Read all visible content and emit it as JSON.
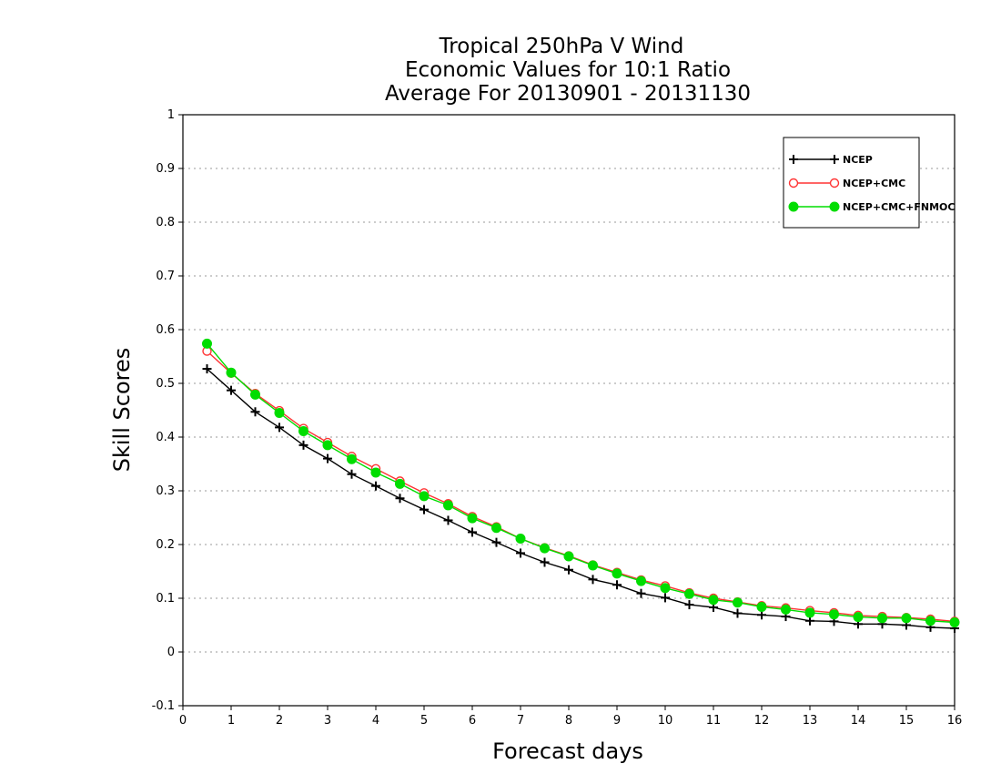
{
  "chart_data": {
    "type": "line",
    "title_lines": [
      "Tropical 250hPa V Wind",
      "Economic Values for 10:1 Ratio",
      "Average For 20130901 - 20131130"
    ],
    "xlabel": "Forecast days",
    "ylabel": "Skill Scores",
    "xlim": [
      0,
      16
    ],
    "ylim": [
      -0.1,
      1
    ],
    "xticks": [
      "0",
      "1",
      "2",
      "3",
      "4",
      "5",
      "6",
      "7",
      "8",
      "9",
      "10",
      "11",
      "12",
      "13",
      "14",
      "15",
      "16"
    ],
    "yticks": [
      "-0.1",
      "0",
      "0.1",
      "0.2",
      "0.3",
      "0.4",
      "0.5",
      "0.6",
      "0.7",
      "0.8",
      "0.9",
      "1"
    ],
    "grid": "horizontal dotted",
    "legend_position": "top-right",
    "x": [
      0.5,
      1,
      1.5,
      2,
      2.5,
      3,
      3.5,
      4,
      4.5,
      5,
      5.5,
      6,
      6.5,
      7,
      7.5,
      8,
      8.5,
      9,
      9.5,
      10,
      10.5,
      11,
      11.5,
      12,
      12.5,
      13,
      13.5,
      14,
      14.5,
      15,
      15.5,
      16
    ],
    "series": [
      {
        "name": "NCEP",
        "color": "#000000",
        "marker": "plus",
        "values": [
          0.527,
          0.487,
          0.447,
          0.418,
          0.385,
          0.36,
          0.331,
          0.309,
          0.286,
          0.265,
          0.245,
          0.223,
          0.204,
          0.184,
          0.167,
          0.153,
          0.135,
          0.125,
          0.109,
          0.101,
          0.088,
          0.083,
          0.072,
          0.069,
          0.066,
          0.058,
          0.057,
          0.052,
          0.052,
          0.05,
          0.046,
          0.044
        ]
      },
      {
        "name": "NCEP+CMC",
        "color": "#ff3333",
        "marker": "open-circle",
        "values": [
          0.56,
          0.519,
          0.481,
          0.449,
          0.416,
          0.39,
          0.364,
          0.341,
          0.318,
          0.296,
          0.276,
          0.252,
          0.233,
          0.211,
          0.194,
          0.179,
          0.162,
          0.148,
          0.134,
          0.123,
          0.11,
          0.1,
          0.093,
          0.086,
          0.082,
          0.077,
          0.073,
          0.068,
          0.066,
          0.064,
          0.061,
          0.057
        ]
      },
      {
        "name": "NCEP+CMC+FNMOC",
        "color": "#00dd00",
        "marker": "filled-circle",
        "values": [
          0.574,
          0.52,
          0.479,
          0.445,
          0.411,
          0.385,
          0.359,
          0.334,
          0.313,
          0.29,
          0.273,
          0.249,
          0.231,
          0.211,
          0.193,
          0.178,
          0.161,
          0.146,
          0.132,
          0.119,
          0.108,
          0.097,
          0.092,
          0.084,
          0.079,
          0.073,
          0.07,
          0.065,
          0.063,
          0.063,
          0.058,
          0.055
        ]
      }
    ]
  }
}
